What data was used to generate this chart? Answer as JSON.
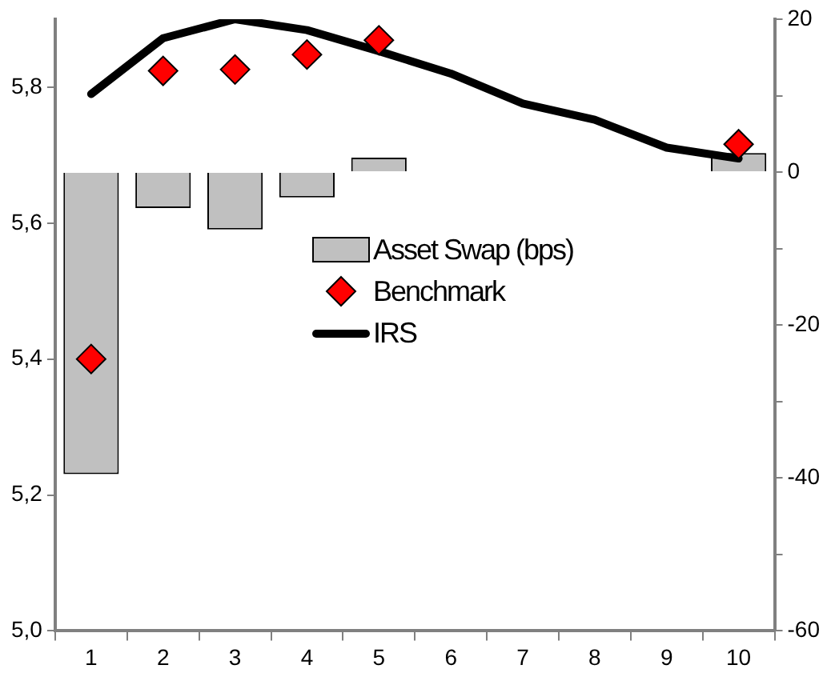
{
  "chart_data": {
    "type": "bar",
    "categories": [
      "1",
      "2",
      "3",
      "4",
      "5",
      "6",
      "7",
      "8",
      "9",
      "10"
    ],
    "series": [
      {
        "name": "Asset Swap (bps)",
        "axis": "y2",
        "color": "#c0c0c0",
        "values": [
          -39.5,
          -4.7,
          -7.5,
          -3.3,
          1.9,
          null,
          null,
          null,
          null,
          2.5
        ]
      },
      {
        "name": "Benchmark",
        "type": "scatter",
        "axis": "y",
        "color": "#ff0000",
        "marker": "diamond",
        "values": [
          5.4,
          5.824,
          5.826,
          5.848,
          5.869,
          null,
          null,
          null,
          null,
          5.716
        ]
      },
      {
        "name": "IRS",
        "type": "line",
        "axis": "y",
        "color": "#000000",
        "marker": "none",
        "values": [
          5.79,
          5.872,
          5.9,
          5.884,
          5.853,
          5.82,
          5.776,
          5.752,
          5.711,
          5.695
        ]
      }
    ],
    "ylim": [
      5.0,
      5.9
    ],
    "yticks": [
      {
        "value": 5.0,
        "label": "5,0"
      },
      {
        "value": 5.2,
        "label": "5,2"
      },
      {
        "value": 5.4,
        "label": "5,4"
      },
      {
        "value": 5.6,
        "label": "5,6"
      },
      {
        "value": 5.8,
        "label": "5,8"
      }
    ],
    "y2lim": [
      -60,
      20
    ],
    "y2ticks": [
      -60,
      {
        "value": -50,
        "label": null
      },
      -40,
      {
        "value": -30,
        "label": null
      },
      -20,
      {
        "value": -10,
        "label": null
      },
      0,
      {
        "value": 10,
        "label": null
      },
      20
    ],
    "grid": false,
    "legend": "center"
  }
}
